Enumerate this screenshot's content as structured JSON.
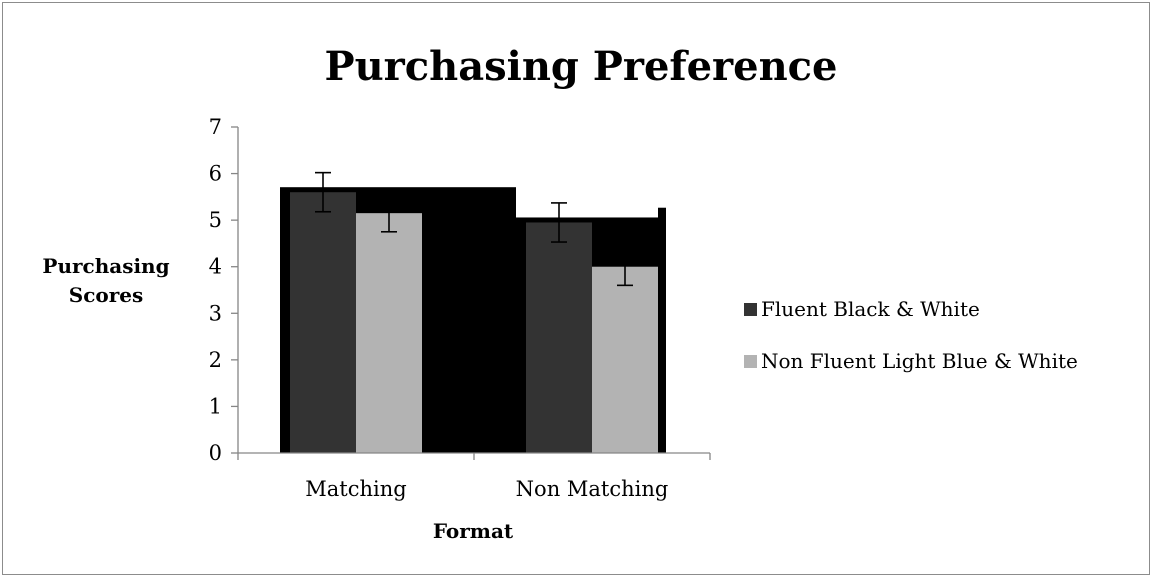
{
  "chart_data": {
    "type": "bar",
    "title": "Purchasing Preference",
    "xlabel": "Format",
    "ylabel_lines": [
      "Purchasing",
      "Scores"
    ],
    "categories": [
      "Matching",
      "Non Matching"
    ],
    "ylim": [
      0,
      7
    ],
    "yticks": [
      0,
      1,
      2,
      3,
      4,
      5,
      6,
      7
    ],
    "series": [
      {
        "name": "Fluent Black & White",
        "color": "#333333",
        "values": [
          5.6,
          4.95
        ],
        "errors": [
          0.42,
          0.42
        ]
      },
      {
        "name": "Non Fluent Light Blue & White",
        "color": "#b3b3b3",
        "values": [
          5.15,
          4.0
        ],
        "errors": [
          0.4,
          0.4
        ]
      }
    ],
    "shadow_color": "#000000",
    "legend_position": "right",
    "grid": false
  }
}
